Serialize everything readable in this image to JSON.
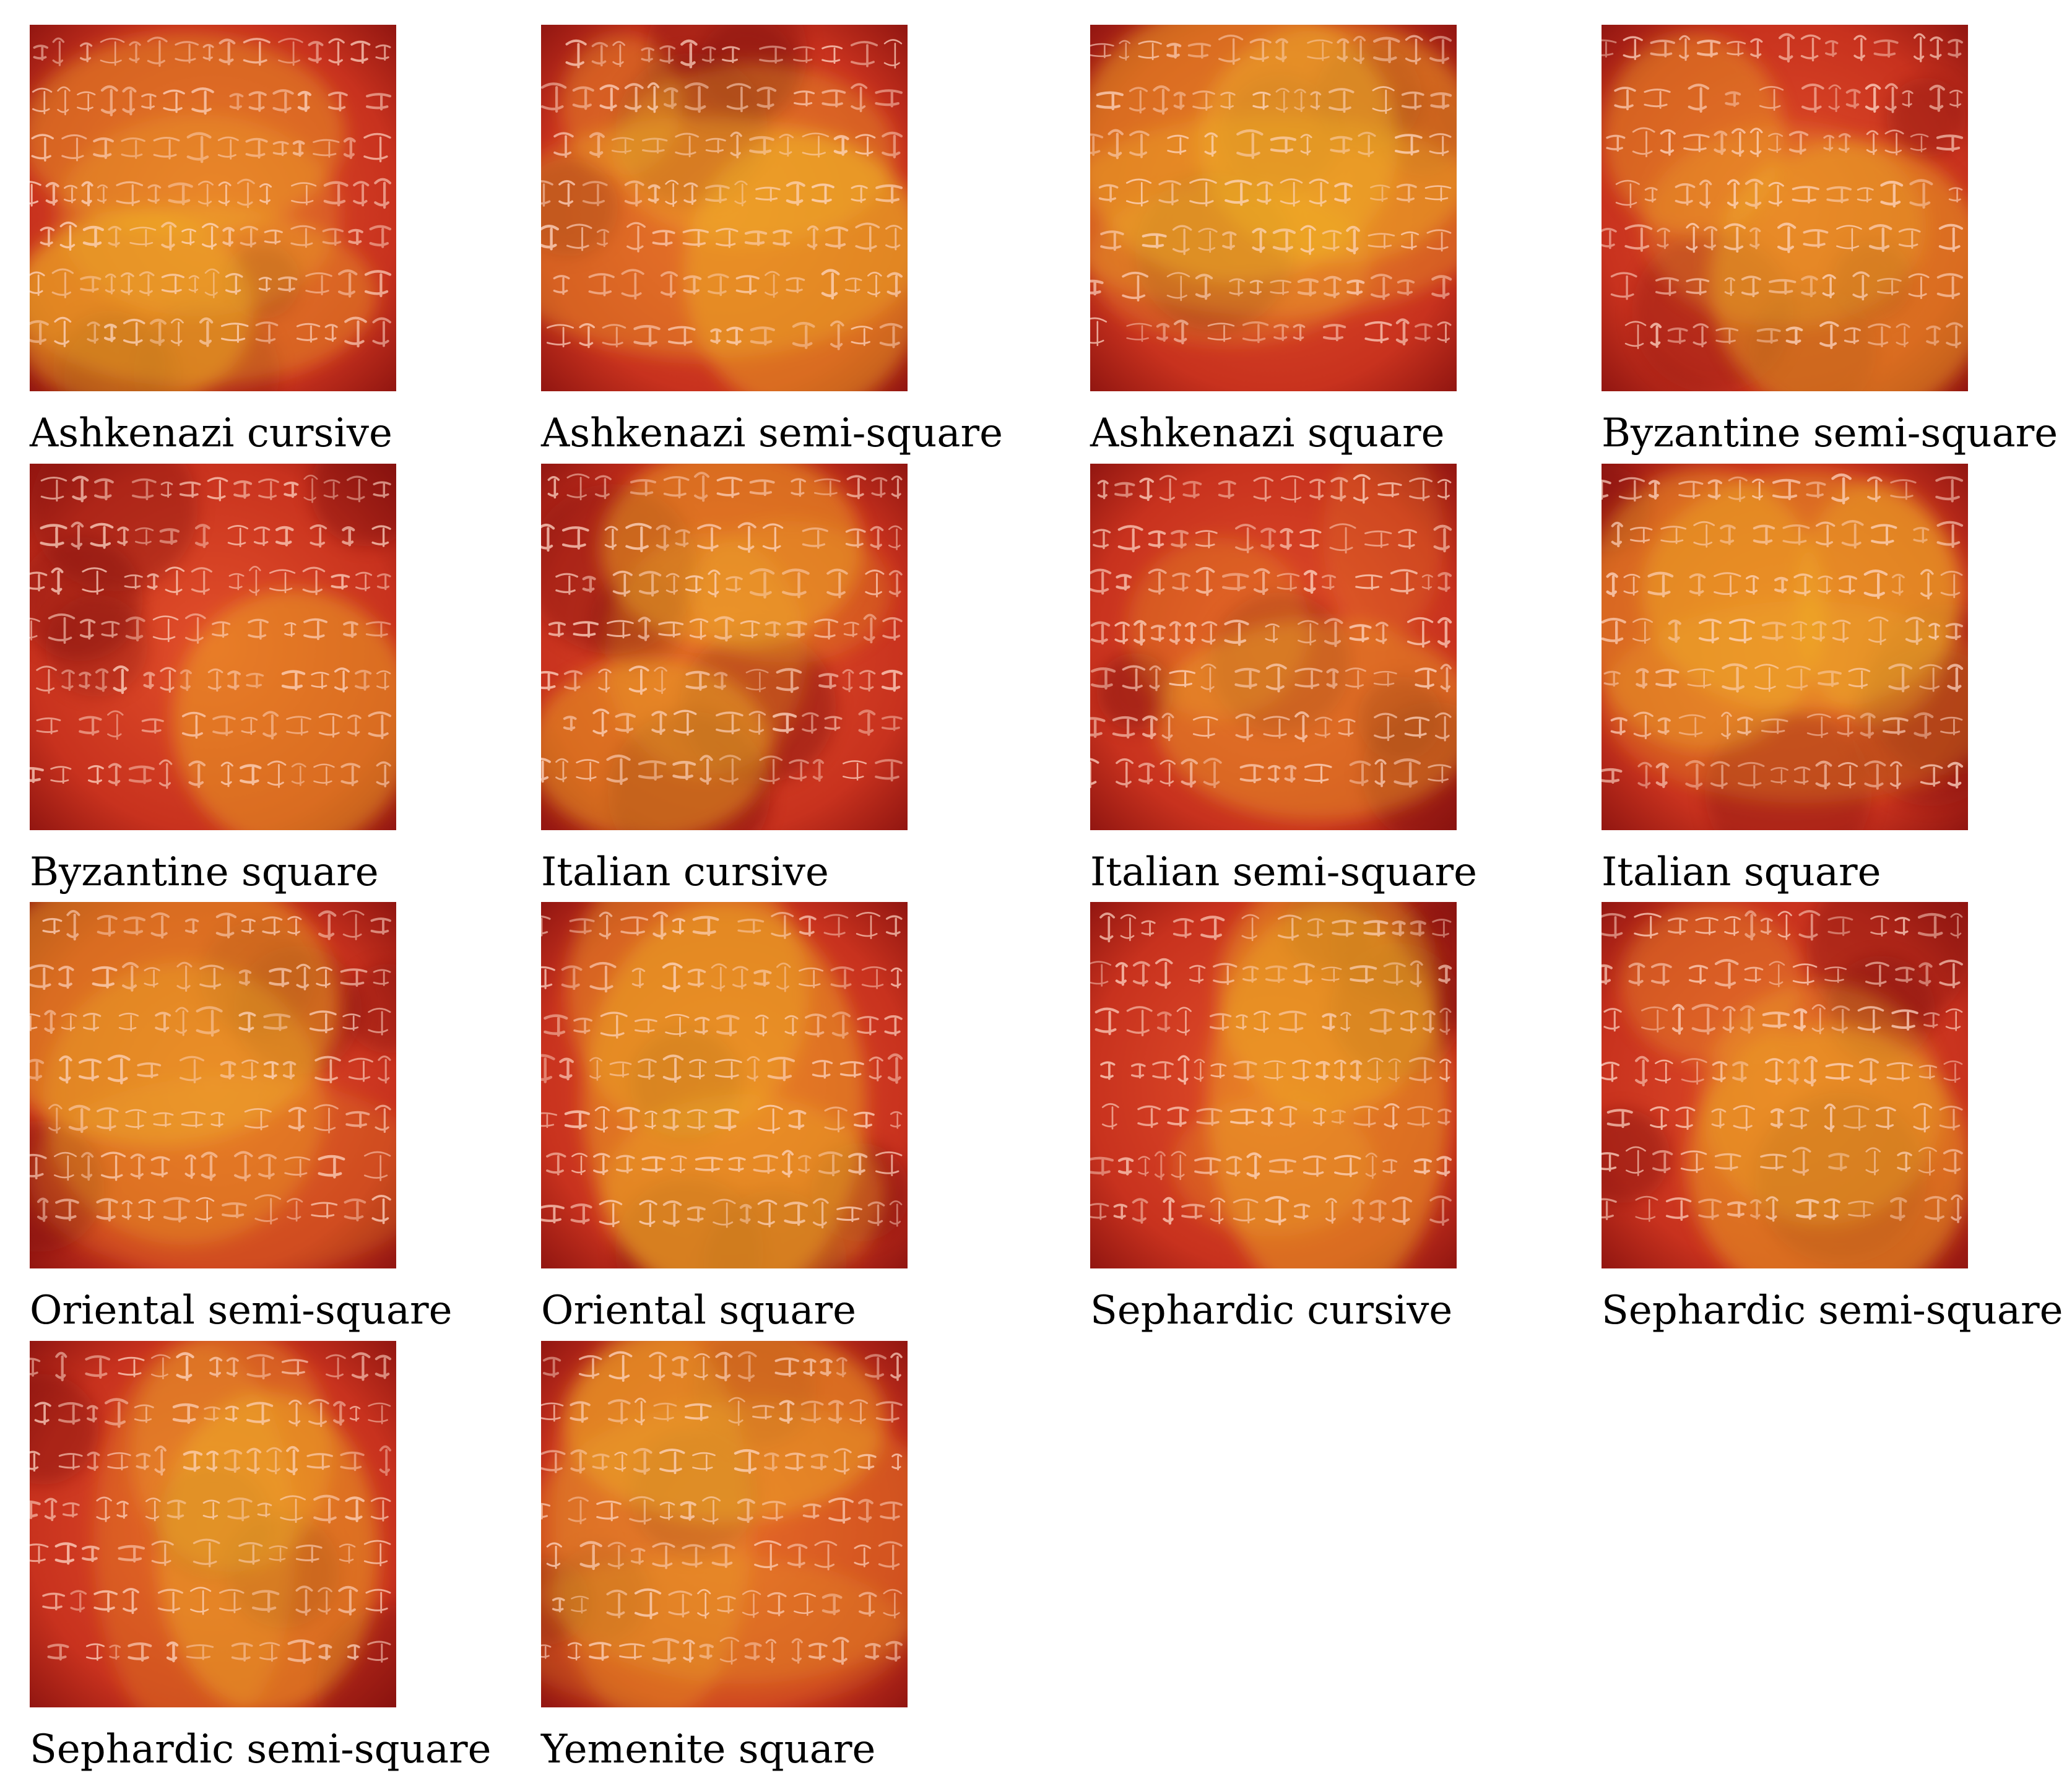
{
  "figure": {
    "panels": [
      {
        "label": "Ashkenazi cursive",
        "seed": 3,
        "blobs": [
          [
            0.42,
            0.3,
            0.16,
            0.1,
            0.85
          ],
          [
            0.46,
            0.52,
            0.14,
            0.1,
            0.6
          ],
          [
            0.28,
            0.78,
            0.12,
            0.1,
            1.0
          ],
          [
            0.45,
            0.74,
            0.18,
            0.09,
            0.8
          ]
        ]
      },
      {
        "label": "Ashkenazi semi-square",
        "seed": 7,
        "blobs": [
          [
            0.22,
            0.22,
            0.06,
            0.07,
            0.7
          ],
          [
            0.58,
            0.35,
            0.14,
            0.09,
            0.75
          ],
          [
            0.45,
            0.58,
            0.22,
            0.12,
            0.8
          ],
          [
            0.72,
            0.68,
            0.12,
            0.14,
            1.0
          ]
        ]
      },
      {
        "label": "Ashkenazi square",
        "seed": 11,
        "blobs": [
          [
            0.4,
            0.32,
            0.16,
            0.14,
            1.0
          ],
          [
            0.68,
            0.32,
            0.14,
            0.12,
            0.95
          ],
          [
            0.5,
            0.52,
            0.22,
            0.1,
            0.75
          ],
          [
            0.38,
            0.65,
            0.14,
            0.08,
            0.6
          ]
        ]
      },
      {
        "label": "Byzantine semi-square",
        "seed": 13,
        "blobs": [
          [
            0.25,
            0.3,
            0.09,
            0.1,
            0.85
          ],
          [
            0.68,
            0.7,
            0.14,
            0.14,
            1.0
          ],
          [
            0.5,
            0.55,
            0.14,
            0.1,
            0.6
          ]
        ]
      },
      {
        "label": "Byzantine square",
        "seed": 17,
        "blobs": [
          [
            0.72,
            0.7,
            0.12,
            0.13,
            1.0
          ]
        ]
      },
      {
        "label": "Italian cursive",
        "seed": 19,
        "blobs": [
          [
            0.52,
            0.23,
            0.13,
            0.1,
            1.0
          ],
          [
            0.3,
            0.78,
            0.12,
            0.09,
            1.0
          ],
          [
            0.45,
            0.52,
            0.1,
            0.12,
            0.55
          ],
          [
            0.68,
            0.35,
            0.1,
            0.07,
            0.55
          ]
        ]
      },
      {
        "label": "Italian semi-square",
        "seed": 23,
        "blobs": [
          [
            0.62,
            0.7,
            0.16,
            0.1,
            0.85
          ],
          [
            0.35,
            0.45,
            0.09,
            0.09,
            0.55
          ],
          [
            0.8,
            0.2,
            0.06,
            0.1,
            0.35
          ]
        ]
      },
      {
        "label": "Italian square",
        "seed": 29,
        "blobs": [
          [
            0.28,
            0.4,
            0.12,
            0.14,
            0.9
          ],
          [
            0.55,
            0.35,
            0.16,
            0.12,
            0.9
          ],
          [
            0.75,
            0.38,
            0.08,
            0.12,
            0.8
          ],
          [
            0.55,
            0.65,
            0.2,
            0.1,
            0.55
          ]
        ]
      },
      {
        "label": "Oriental semi-square",
        "seed": 31,
        "blobs": [
          [
            0.35,
            0.28,
            0.18,
            0.14,
            1.0
          ],
          [
            0.42,
            0.55,
            0.14,
            0.14,
            0.7
          ],
          [
            0.55,
            0.75,
            0.2,
            0.1,
            0.45
          ]
        ]
      },
      {
        "label": "Oriental square",
        "seed": 37,
        "blobs": [
          [
            0.4,
            0.25,
            0.12,
            0.14,
            0.85
          ],
          [
            0.5,
            0.55,
            0.14,
            0.2,
            1.0
          ],
          [
            0.55,
            0.8,
            0.14,
            0.1,
            0.75
          ]
        ]
      },
      {
        "label": "Sephardic cursive",
        "seed": 41,
        "blobs": [
          [
            0.65,
            0.25,
            0.11,
            0.12,
            0.9
          ],
          [
            0.65,
            0.55,
            0.12,
            0.2,
            1.0
          ],
          [
            0.5,
            0.72,
            0.1,
            0.07,
            0.55
          ]
        ]
      },
      {
        "label": "Sephardic semi-square",
        "seed": 43,
        "blobs": [
          [
            0.3,
            0.22,
            0.09,
            0.08,
            0.65
          ],
          [
            0.6,
            0.55,
            0.12,
            0.12,
            0.7
          ],
          [
            0.62,
            0.72,
            0.14,
            0.14,
            1.0
          ]
        ]
      },
      {
        "label": "Sephardic semi-square",
        "seed": 47,
        "blobs": [
          [
            0.55,
            0.3,
            0.1,
            0.12,
            0.75
          ],
          [
            0.65,
            0.58,
            0.11,
            0.16,
            1.0
          ],
          [
            0.45,
            0.55,
            0.1,
            0.2,
            0.55
          ]
        ]
      },
      {
        "label": "Yemenite square",
        "seed": 53,
        "blobs": [
          [
            0.5,
            0.22,
            0.16,
            0.1,
            1.0
          ],
          [
            0.3,
            0.5,
            0.1,
            0.2,
            0.65
          ],
          [
            0.55,
            0.55,
            0.22,
            0.14,
            0.55
          ],
          [
            0.45,
            0.8,
            0.2,
            0.08,
            0.45
          ]
        ]
      }
    ]
  }
}
